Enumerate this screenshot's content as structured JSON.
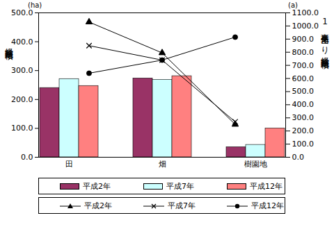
{
  "chart_data": {
    "type": "bar",
    "categories": [
      "田",
      "畑",
      "樹園地"
    ],
    "ylabel": "経営耕地面積",
    "y_unit": "(ha)",
    "y2label": "1事業体当たり経営耕地面積",
    "y2_unit": "(a)",
    "ylim": [
      0,
      500
    ],
    "yticks": [
      {
        "value": 0,
        "label": "0.0"
      },
      {
        "value": 100,
        "label": "100.0"
      },
      {
        "value": 200,
        "label": "200.0"
      },
      {
        "value": 300,
        "label": "300.0"
      },
      {
        "value": 400,
        "label": "400.0"
      },
      {
        "value": 500,
        "label": "500.0"
      }
    ],
    "y2lim": [
      0,
      1100
    ],
    "y2ticks": [
      {
        "value": 0,
        "label": "0.0"
      },
      {
        "value": 100,
        "label": "100.0"
      },
      {
        "value": 200,
        "label": "200.0"
      },
      {
        "value": 300,
        "label": "300.0"
      },
      {
        "value": 400,
        "label": "400.0"
      },
      {
        "value": 500,
        "label": "500.0"
      },
      {
        "value": 600,
        "label": "600.0"
      },
      {
        "value": 700,
        "label": "700.0"
      },
      {
        "value": 800,
        "label": "800.0"
      },
      {
        "value": 900,
        "label": "900.0"
      },
      {
        "value": 1000,
        "label": "1000.0"
      },
      {
        "value": 1100,
        "label": "1100.0"
      }
    ],
    "grid": false,
    "legend": "bottom",
    "series": [
      {
        "name": "平成2年",
        "type": "bar",
        "color": "#993366",
        "values": [
          240,
          273,
          35
        ]
      },
      {
        "name": "平成7年",
        "type": "bar",
        "color": "#ccffff",
        "values": [
          271,
          268,
          43
        ]
      },
      {
        "name": "平成12年",
        "type": "bar",
        "color": "#ff8080",
        "values": [
          247,
          281,
          100
        ]
      },
      {
        "name": "平成2年",
        "type": "line",
        "axis": "y2",
        "color": "#000000",
        "marker": "triangle",
        "values": [
          1030,
          795,
          250
        ]
      },
      {
        "name": "平成7年",
        "type": "line",
        "axis": "y2",
        "color": "#000000",
        "marker": "x",
        "values": [
          850,
          740,
          270
        ]
      },
      {
        "name": "平成12年",
        "type": "line",
        "axis": "y2",
        "color": "#000000",
        "marker": "circle",
        "values": [
          640,
          740,
          915
        ]
      }
    ]
  }
}
